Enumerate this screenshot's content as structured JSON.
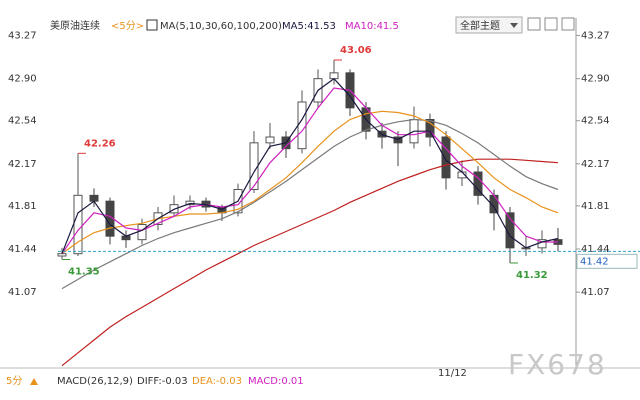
{
  "toolbar": {
    "symbol": "美原油连续",
    "period": "<5分>",
    "ma": "MA(5,10,30,60,100,200)",
    "ma5": "MA5:41.53",
    "ma10": "MA10:41.5",
    "theme": "全部主题"
  },
  "chart_data": {
    "type": "candlestick",
    "candles": {
      "open": [
        41.38,
        41.4,
        41.9,
        41.85,
        41.55,
        41.52,
        41.65,
        41.75,
        41.82,
        41.85,
        41.8,
        41.75,
        41.95,
        42.35,
        42.4,
        42.3,
        42.7,
        42.9,
        42.95,
        42.65,
        42.45,
        42.4,
        42.35,
        42.55,
        42.4,
        42.05,
        42.1,
        41.9,
        41.75,
        41.45,
        41.45,
        41.52
      ],
      "high": [
        41.45,
        42.26,
        41.96,
        41.88,
        41.6,
        41.7,
        41.8,
        41.9,
        41.9,
        41.88,
        41.82,
        42.0,
        42.45,
        42.52,
        42.45,
        42.8,
        42.98,
        43.06,
        42.98,
        42.7,
        42.52,
        42.45,
        42.66,
        42.6,
        42.45,
        42.2,
        42.15,
        41.95,
        41.8,
        41.55,
        41.6,
        41.62
      ],
      "low": [
        41.35,
        41.38,
        41.8,
        41.48,
        41.45,
        41.48,
        41.6,
        41.72,
        41.78,
        41.76,
        41.68,
        41.72,
        41.92,
        42.3,
        42.22,
        42.26,
        42.65,
        42.85,
        42.58,
        42.38,
        42.3,
        42.15,
        42.3,
        42.32,
        41.95,
        41.98,
        41.82,
        41.6,
        41.32,
        41.38,
        41.4,
        41.42
      ],
      "close": [
        41.4,
        41.9,
        41.85,
        41.55,
        41.52,
        41.65,
        41.75,
        41.82,
        41.85,
        41.8,
        41.75,
        41.95,
        42.35,
        42.4,
        42.3,
        42.7,
        42.9,
        42.95,
        42.65,
        42.45,
        42.4,
        42.35,
        42.55,
        42.4,
        42.05,
        42.1,
        41.9,
        41.75,
        41.45,
        41.45,
        41.52,
        41.48
      ]
    },
    "up_color": "#555555",
    "down_color": "#444444",
    "high_color": "#e03a3a",
    "low_color": "#3a9a3a",
    "series": [
      {
        "color": "#c02020",
        "values": [
          40.44,
          40.55,
          40.66,
          40.77,
          40.86,
          40.94,
          41.02,
          41.1,
          41.18,
          41.26,
          41.33,
          41.4,
          41.47,
          41.53,
          41.59,
          41.65,
          41.71,
          41.77,
          41.84,
          41.9,
          41.96,
          42.02,
          42.07,
          42.12,
          42.16,
          42.19,
          42.21,
          42.21,
          42.21,
          42.2,
          42.19,
          42.18
        ]
      },
      {
        "color": "#7a7a7a",
        "values": [
          41.1,
          41.18,
          41.26,
          41.33,
          41.4,
          41.47,
          41.53,
          41.58,
          41.62,
          41.66,
          41.7,
          41.76,
          41.84,
          41.93,
          42.02,
          42.12,
          42.22,
          42.32,
          42.4,
          42.46,
          42.5,
          42.53,
          42.55,
          42.54,
          42.5,
          42.43,
          42.35,
          42.25,
          42.15,
          42.06,
          42.0,
          41.95
        ]
      },
      {
        "color": "#e8921c",
        "values": [
          41.4,
          41.5,
          41.58,
          41.62,
          41.64,
          41.66,
          41.7,
          41.72,
          41.74,
          41.74,
          41.75,
          41.78,
          41.85,
          41.95,
          42.05,
          42.18,
          42.32,
          42.45,
          42.55,
          42.6,
          42.62,
          42.61,
          42.58,
          42.52,
          42.42,
          42.3,
          42.18,
          42.05,
          41.95,
          41.88,
          41.8,
          41.75
        ]
      },
      {
        "color": "#d020c0",
        "values": [
          41.4,
          41.6,
          41.75,
          41.72,
          41.62,
          41.6,
          41.66,
          41.72,
          41.8,
          41.82,
          41.8,
          41.82,
          41.98,
          42.18,
          42.32,
          42.45,
          42.65,
          42.82,
          42.8,
          42.65,
          42.5,
          42.42,
          42.42,
          42.45,
          42.3,
          42.15,
          42.05,
          41.9,
          41.7,
          41.55,
          41.5,
          41.5
        ]
      },
      {
        "color": "#1a1a40",
        "values": [
          41.4,
          41.75,
          41.85,
          41.65,
          41.55,
          41.6,
          41.7,
          41.78,
          41.83,
          41.82,
          41.78,
          41.85,
          42.1,
          42.32,
          42.35,
          42.55,
          42.8,
          42.9,
          42.75,
          42.55,
          42.42,
          42.38,
          42.45,
          42.45,
          42.2,
          42.1,
          41.95,
          41.8,
          41.55,
          41.45,
          41.5,
          41.53
        ]
      }
    ],
    "current": 41.42,
    "current_color": "#2fa8c8",
    "ylim": [
      40.42,
      43.42
    ],
    "yticks": [
      43.27,
      {
        "value": 42.9,
        "label": "42.90"
      },
      42.54,
      42.17,
      41.81,
      41.44,
      41.07
    ],
    "x_label": "11/12"
  },
  "footer": {
    "period": "5分",
    "macd": "MACD(26,12,9)",
    "diff": "DIFF:-0.03",
    "dea": "DEA:-0.03",
    "macd_value": "MACD:0.01",
    "watermark": "FX678"
  }
}
